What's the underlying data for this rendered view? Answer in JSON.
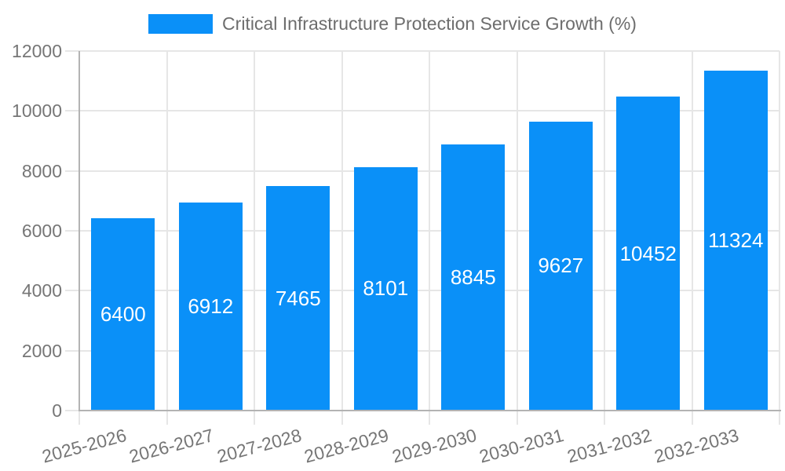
{
  "chart_data": {
    "type": "bar",
    "title": "Critical Infrastructure Protection Service Growth (%)",
    "categories": [
      "2025-2026",
      "2026-2027",
      "2027-2028",
      "2028-2029",
      "2029-2030",
      "2030-2031",
      "2031-2032",
      "2032-2033"
    ],
    "values": [
      6400,
      6912,
      7465,
      8101,
      8845,
      9627,
      10452,
      11324
    ],
    "xlabel": "",
    "ylabel": "",
    "ylim": [
      0,
      12000
    ],
    "yticks": [
      0,
      2000,
      4000,
      6000,
      8000,
      10000,
      12000
    ],
    "grid": true,
    "legend_position": "top-center",
    "x_tick_rotation_deg": -15,
    "colors": {
      "bar": "#0a90f8",
      "value_label": "#ffffff",
      "tick_label": "#767676",
      "title": "#6d6d6d",
      "gridline": "#e6e6e6",
      "axis": "#b3b3b3"
    }
  }
}
